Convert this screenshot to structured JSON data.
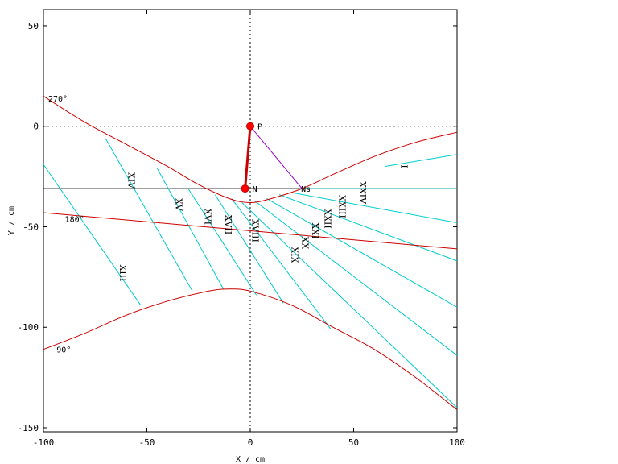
{
  "chart_data": {
    "type": "line",
    "xlabel": "X / cm",
    "ylabel": "Y / cm",
    "xlim": [
      -100,
      100
    ],
    "ylim": [
      -152,
      58
    ],
    "xticks": [
      -100,
      -50,
      0,
      50,
      100
    ],
    "yticks": [
      50,
      0,
      -50,
      -100,
      -150
    ],
    "grid": false,
    "colors": {
      "curve": "#cc0000",
      "hour": "#00cccc",
      "style": "#cc0000",
      "line": "#000000",
      "substyle": "#9900cc"
    },
    "points": [
      {
        "name": "P",
        "x": 0,
        "y": 0
      },
      {
        "name": "N",
        "x": -2.5,
        "y": -31
      },
      {
        "name": "Ns",
        "x": 30,
        "y": -31
      }
    ],
    "reference_lines": {
      "horizontal_y": [
        0,
        -31
      ],
      "vertical_x": [
        0
      ]
    },
    "angle_labels": [
      {
        "text": "270°",
        "x": -100,
        "y": 14
      },
      {
        "text": "180°",
        "x": -92,
        "y": -46
      },
      {
        "text": "90°",
        "x": -96,
        "y": -111
      }
    ],
    "series": [
      {
        "kind": "curve",
        "x": [
          -100,
          -80,
          -60,
          -40,
          -25,
          -10,
          0,
          10,
          25,
          40,
          60,
          80,
          100
        ],
        "y": [
          15,
          2,
          -9,
          -20,
          -29,
          -36,
          -38,
          -36,
          -31,
          -24,
          -15,
          -8,
          -3
        ]
      },
      {
        "kind": "curve",
        "x": [
          -100,
          -80,
          -60,
          -40,
          -20,
          -10,
          0,
          20,
          40,
          60,
          80,
          100
        ],
        "y": [
          -111,
          -103,
          -94,
          -87,
          -82,
          -81,
          -82,
          -89,
          -100,
          -111,
          -125,
          -141
        ]
      },
      {
        "kind": "curve",
        "x": [
          -100,
          100
        ],
        "y": [
          -43,
          -61
        ]
      },
      {
        "kind": "hour",
        "x": [
          -100,
          -53
        ],
        "y": [
          -19,
          -89
        ]
      },
      {
        "kind": "hour",
        "x": [
          -70,
          -28
        ],
        "y": [
          -6,
          -82
        ]
      },
      {
        "kind": "hour",
        "x": [
          -45,
          -13
        ],
        "y": [
          -21,
          -81
        ]
      },
      {
        "kind": "hour",
        "x": [
          -30,
          3
        ],
        "y": [
          -31,
          -84
        ]
      },
      {
        "kind": "hour",
        "x": [
          -17,
          16
        ],
        "y": [
          -34,
          -88
        ]
      },
      {
        "kind": "hour",
        "x": [
          -9,
          39
        ],
        "y": [
          -36,
          -101
        ]
      },
      {
        "kind": "hour",
        "x": [
          -4,
          100
        ],
        "y": [
          -38,
          -140
        ]
      },
      {
        "kind": "hour",
        "x": [
          2,
          100
        ],
        "y": [
          -37,
          -114
        ]
      },
      {
        "kind": "hour",
        "x": [
          8,
          100
        ],
        "y": [
          -36,
          -90
        ]
      },
      {
        "kind": "hour",
        "x": [
          14,
          100
        ],
        "y": [
          -34,
          -67
        ]
      },
      {
        "kind": "hour",
        "x": [
          20,
          100
        ],
        "y": [
          -33,
          -48
        ]
      },
      {
        "kind": "hour",
        "x": [
          27,
          100
        ],
        "y": [
          -31,
          -31
        ]
      },
      {
        "kind": "hour",
        "x": [
          65,
          100
        ],
        "y": [
          -20,
          -14
        ]
      },
      {
        "kind": "style",
        "x": [
          0,
          -2.5
        ],
        "y": [
          0,
          -31
        ]
      },
      {
        "kind": "substyle",
        "x": [
          0,
          25
        ],
        "y": [
          0,
          -31
        ]
      }
    ],
    "hour_labels": [
      {
        "text": "XIII",
        "x": -63,
        "y": -73
      },
      {
        "text": "XIV",
        "x": -59,
        "y": -27
      },
      {
        "text": "XV",
        "x": -36,
        "y": -39
      },
      {
        "text": "XVI",
        "x": -22,
        "y": -45
      },
      {
        "text": "XVII",
        "x": -12,
        "y": -49
      },
      {
        "text": "XVIII",
        "x": 1,
        "y": -52
      },
      {
        "text": "XIX",
        "x": 20,
        "y": -64
      },
      {
        "text": "XX",
        "x": 25,
        "y": -58
      },
      {
        "text": "XXI",
        "x": 30,
        "y": -52
      },
      {
        "text": "XXII",
        "x": 36,
        "y": -46
      },
      {
        "text": "XXIII",
        "x": 43,
        "y": -40
      },
      {
        "text": "XXIV",
        "x": 53,
        "y": -33
      },
      {
        "text": "I",
        "x": 73,
        "y": -20
      }
    ]
  }
}
